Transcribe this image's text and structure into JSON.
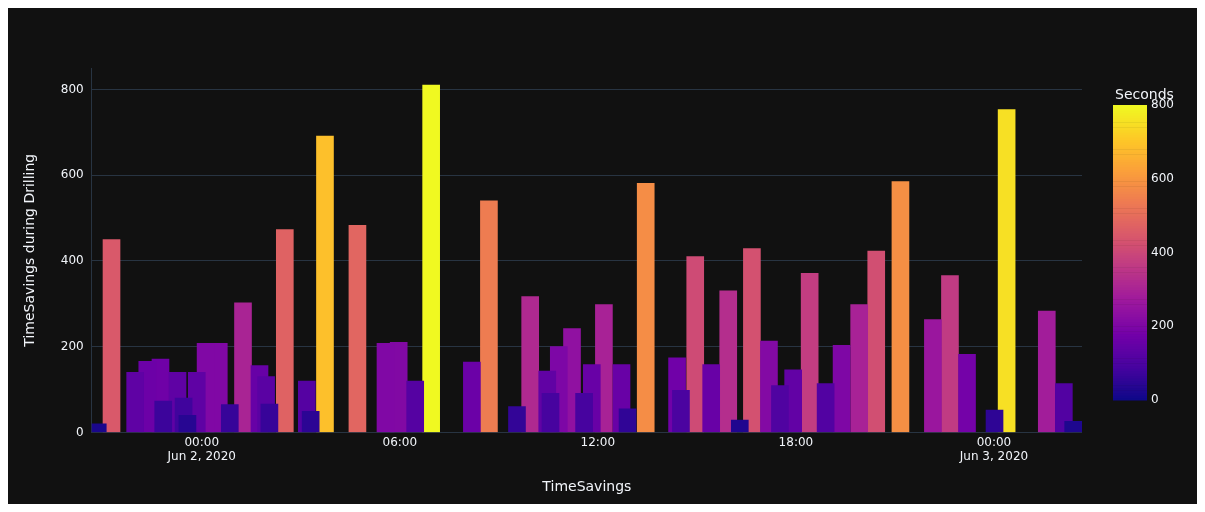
{
  "chart_data": {
    "type": "bar",
    "xlabel": "TimeSavings",
    "ylabel": "TimeSavings during Drilling",
    "clabel": "Seconds",
    "x": [
      "2020-06-01T20:51",
      "2020-06-01T21:16",
      "2020-06-01T21:59",
      "2020-06-01T22:21",
      "2020-06-01T22:45",
      "2020-06-01T22:50",
      "2020-06-01T23:16",
      "2020-06-01T23:27",
      "2020-06-01T23:34",
      "2020-06-01T23:51",
      "2020-06-02T00:07",
      "2020-06-02T00:31",
      "2020-06-02T00:51",
      "2020-06-02T01:15",
      "2020-06-02T01:45",
      "2020-06-02T01:57",
      "2020-06-02T02:03",
      "2020-06-02T02:31",
      "2020-06-02T03:11",
      "2020-06-02T03:18",
      "2020-06-02T03:44",
      "2020-06-02T04:43",
      "2020-06-02T05:34",
      "2020-06-02T05:58",
      "2020-06-02T06:28",
      "2020-06-02T06:57",
      "2020-06-02T08:11",
      "2020-06-02T08:42",
      "2020-06-02T09:33",
      "2020-06-02T09:57",
      "2020-06-02T10:28",
      "2020-06-02T10:34",
      "2020-06-02T10:49",
      "2020-06-02T11:13",
      "2020-06-02T11:35",
      "2020-06-02T11:49",
      "2020-06-02T12:11",
      "2020-06-02T12:43",
      "2020-06-02T12:54",
      "2020-06-02T13:27",
      "2020-06-02T14:24",
      "2020-06-02T14:31",
      "2020-06-02T14:57",
      "2020-06-02T15:26",
      "2020-06-02T15:57",
      "2020-06-02T16:18",
      "2020-06-02T16:40",
      "2020-06-02T17:11",
      "2020-06-02T17:31",
      "2020-06-02T17:55",
      "2020-06-02T18:25",
      "2020-06-02T18:54",
      "2020-06-02T19:23",
      "2020-06-02T19:55",
      "2020-06-02T20:26",
      "2020-06-02T21:10",
      "2020-06-02T22:09",
      "2020-06-02T22:40",
      "2020-06-02T23:11",
      "2020-06-03T00:01",
      "2020-06-03T00:23",
      "2020-06-03T01:36",
      "2020-06-03T02:07",
      "2020-06-03T02:24"
    ],
    "values": [
      20,
      450,
      140,
      166,
      171,
      73,
      140,
      80,
      40,
      140,
      208,
      208,
      65,
      302,
      156,
      130,
      66,
      473,
      120,
      49,
      691,
      483,
      208,
      210,
      120,
      810,
      164,
      540,
      60,
      317,
      143,
      91,
      200,
      242,
      91,
      158,
      298,
      158,
      55,
      581,
      174,
      98,
      410,
      158,
      330,
      29,
      429,
      213,
      109,
      146,
      371,
      114,
      203,
      298,
      423,
      585,
      263,
      366,
      182,
      52,
      753,
      283,
      114,
      26
    ],
    "xlim": [
      "2020-06-01T20:40",
      "2020-06-03T02:40"
    ],
    "xticks": [
      {
        "value": "2020-06-02T00:00",
        "label": "00:00\nJun 2, 2020"
      },
      {
        "value": "2020-06-02T06:00",
        "label": "06:00"
      },
      {
        "value": "2020-06-02T12:00",
        "label": "12:00"
      },
      {
        "value": "2020-06-02T18:00",
        "label": "18:00"
      },
      {
        "value": "2020-06-03T00:00",
        "label": "00:00\nJun 3, 2020"
      }
    ],
    "ylim": [
      0,
      850
    ],
    "yticks": [
      0,
      200,
      400,
      600,
      800
    ],
    "grid": "y",
    "clim": [
      0,
      800
    ],
    "cticks": [
      0,
      200,
      400,
      600,
      800
    ]
  }
}
